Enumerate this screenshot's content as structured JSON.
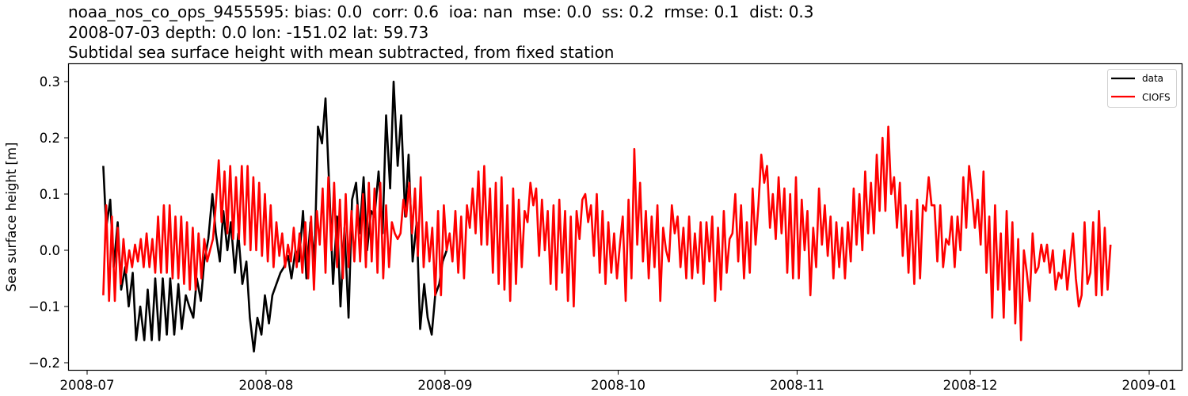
{
  "title": {
    "line1": "noaa_nos_co_ops_9455595: bias: 0.0  corr: 0.6  ioa: nan  mse: 0.0  ss: 0.2  rmse: 0.1  dist: 0.3",
    "line2": "2008-07-03 depth: 0.0 lon: -151.02 lat: 59.73",
    "line3": "Subtidal sea surface height with mean subtracted, from fixed station"
  },
  "axes": {
    "ylabel": "Sea surface height [m]",
    "yticks": [
      "0.3",
      "0.2",
      "0.1",
      "0.0",
      "−0.1",
      "−0.2"
    ],
    "xticks": [
      "2008-07",
      "2008-08",
      "2008-09",
      "2008-10",
      "2008-11",
      "2008-12",
      "2009-01"
    ]
  },
  "legend": {
    "items": [
      {
        "label": "data",
        "color": "#000000"
      },
      {
        "label": "CIOFS",
        "color": "#ff0000"
      }
    ]
  },
  "chart_data": {
    "type": "line",
    "title": "noaa_nos_co_ops_9455595: bias: 0.0  corr: 0.6  ioa: nan  mse: 0.0  ss: 0.2  rmse: 0.1  dist: 0.3 / 2008-07-03 depth: 0.0 lon: -151.02 lat: 59.73 / Subtidal sea surface height with mean subtracted, from fixed station",
    "xlabel": "",
    "ylabel": "Sea surface height [m]",
    "ylim": [
      -0.215,
      0.33
    ],
    "xlim": [
      "2008-06-28",
      "2009-01-04"
    ],
    "grid": false,
    "legend_position": "upper right",
    "x_ticks": [
      "2008-07",
      "2008-08",
      "2008-09",
      "2008-10",
      "2008-11",
      "2008-12",
      "2009-01"
    ],
    "y_ticks": [
      0.3,
      0.2,
      0.1,
      0.0,
      -0.1,
      -0.2
    ],
    "series": [
      {
        "name": "data",
        "color": "#000000",
        "x_day_offset_from_2008-07-01": [
          2.8,
          3.3,
          4.0,
          4.6,
          5.3,
          5.9,
          6.6,
          7.2,
          7.9,
          8.5,
          9.2,
          9.9,
          10.5,
          11.2,
          11.8,
          12.5,
          13.1,
          13.8,
          14.4,
          15.1,
          15.8,
          16.4,
          17.1,
          17.7,
          18.4,
          19.0,
          19.7,
          20.3,
          21.0,
          21.7,
          22.3,
          23.0,
          23.6,
          24.3,
          24.9,
          25.6,
          26.2,
          26.9,
          27.6,
          28.2,
          28.9,
          29.5,
          30.2,
          30.8,
          31.5,
          32.1,
          32.8,
          33.5,
          34.1,
          34.8,
          35.4,
          36.1,
          36.7,
          37.4,
          38.0,
          38.7,
          39.4,
          40.0,
          40.7,
          41.3,
          42.0,
          42.6,
          43.3,
          43.9,
          44.6,
          45.3,
          45.9,
          46.6,
          47.2,
          47.9,
          48.5,
          49.2,
          49.8,
          50.5,
          51.2,
          51.8,
          52.5,
          53.1,
          53.8,
          54.4,
          55.1,
          55.7,
          56.4,
          57.1,
          57.7,
          58.4,
          59.0,
          59.7,
          60.3,
          61.0,
          61.6,
          62.3
        ],
        "values": [
          0.15,
          0.04,
          0.09,
          -0.03,
          0.05,
          -0.07,
          -0.03,
          -0.1,
          -0.04,
          -0.16,
          -0.1,
          -0.16,
          -0.07,
          -0.16,
          -0.05,
          -0.16,
          -0.05,
          -0.15,
          -0.05,
          -0.15,
          -0.06,
          -0.14,
          -0.08,
          -0.1,
          -0.12,
          -0.05,
          -0.09,
          -0.02,
          0.02,
          0.1,
          0.03,
          -0.02,
          0.07,
          0.0,
          0.05,
          -0.04,
          0.03,
          -0.06,
          -0.02,
          -0.12,
          -0.18,
          -0.12,
          -0.15,
          -0.08,
          -0.13,
          -0.08,
          -0.06,
          -0.04,
          -0.03,
          -0.01,
          -0.05,
          0.0,
          -0.02,
          0.07,
          -0.05,
          0.05,
          -0.02,
          0.22,
          0.19,
          0.27,
          0.1,
          -0.06,
          0.06,
          -0.1,
          0.04,
          -0.12,
          0.09,
          0.12,
          0.03,
          0.13,
          0.0,
          0.07,
          0.06,
          0.14,
          0.03,
          0.24,
          0.11,
          0.3,
          0.15,
          0.24,
          0.06,
          0.17,
          -0.02,
          0.05,
          -0.14,
          -0.06,
          -0.12,
          -0.15,
          -0.08,
          -0.06,
          -0.02,
          0.0
        ]
      },
      {
        "name": "CIOFS",
        "color": "#ff0000",
        "x_day_offset_from_2008-07-01": [
          2.8,
          3.3,
          3.8,
          4.3,
          4.8,
          5.3,
          5.8,
          6.3,
          6.8,
          7.3,
          7.8,
          8.3,
          8.8,
          9.3,
          9.8,
          10.3,
          10.8,
          11.3,
          11.8,
          12.3,
          12.8,
          13.3,
          13.8,
          14.3,
          14.8,
          15.3,
          15.8,
          16.3,
          16.8,
          17.3,
          17.8,
          18.3,
          18.8,
          19.3,
          19.8,
          20.3,
          20.8,
          21.3,
          21.8,
          22.3,
          22.8,
          23.3,
          23.8,
          24.3,
          24.8,
          25.3,
          25.8,
          26.3,
          26.8,
          27.3,
          27.8,
          28.3,
          28.8,
          29.3,
          29.8,
          30.3,
          30.8,
          31.3,
          31.8,
          32.3,
          32.8,
          33.3,
          33.8,
          34.3,
          34.8,
          35.3,
          35.8,
          36.3,
          36.8,
          37.3,
          37.8,
          38.3,
          38.8,
          39.3,
          39.8,
          40.3,
          40.8,
          41.3,
          41.8,
          42.3,
          42.8,
          43.3,
          43.8,
          44.3,
          44.8,
          45.3,
          45.8,
          46.3,
          46.8,
          47.3,
          47.8,
          48.3,
          48.8,
          49.3,
          49.8,
          50.3,
          50.8,
          51.3,
          51.8,
          52.3,
          52.8,
          53.3,
          53.8,
          54.3,
          54.8,
          55.3,
          55.8,
          56.3,
          56.8,
          57.3,
          57.8,
          58.3,
          58.8,
          59.3,
          59.8,
          60.3,
          60.8,
          61.3,
          61.8,
          62.3,
          62.8,
          63.3,
          63.8,
          64.3,
          64.8,
          65.3,
          65.8,
          66.3,
          66.8,
          67.3,
          67.8,
          68.3,
          68.8,
          69.3,
          69.8,
          70.3,
          70.8,
          71.3,
          71.8,
          72.3,
          72.8,
          73.3,
          73.8,
          74.3,
          74.8,
          75.3,
          75.8,
          76.3,
          76.8,
          77.3,
          77.8,
          78.3,
          78.8,
          79.3,
          79.8,
          80.3,
          80.8,
          81.3,
          81.8,
          82.3,
          82.8,
          83.3,
          83.8,
          84.3,
          84.8,
          85.3,
          85.8,
          86.3,
          86.8,
          87.3,
          87.8,
          88.3,
          88.8,
          89.3,
          89.8,
          90.3,
          90.8,
          91.3,
          91.8,
          92.3,
          92.8,
          93.3,
          93.8,
          94.3,
          94.8,
          95.3,
          95.8,
          96.3,
          96.8,
          97.3,
          97.8,
          98.3,
          98.8,
          99.3,
          99.8,
          100.3,
          100.8,
          101.3,
          101.8,
          102.3,
          102.8,
          103.3,
          103.8,
          104.3,
          104.8,
          105.3,
          105.8,
          106.3,
          106.8,
          107.3,
          107.8,
          108.3,
          108.8,
          109.3,
          109.8,
          110.3,
          110.8,
          111.3,
          111.8,
          112.3,
          112.8,
          113.3,
          113.8,
          114.3,
          114.8,
          115.3,
          115.8,
          116.3,
          116.8,
          117.3,
          117.8,
          118.3,
          118.8,
          119.3,
          119.8,
          120.3,
          120.8,
          121.3,
          121.8,
          122.3,
          122.8,
          123.3,
          123.8,
          124.3,
          124.8,
          125.3,
          125.8,
          126.3,
          126.8,
          127.3,
          127.8,
          128.3,
          128.8,
          129.3,
          129.8,
          130.3,
          130.8,
          131.3,
          131.8,
          132.3,
          132.8,
          133.3,
          133.8,
          134.3,
          134.8,
          135.3,
          135.8,
          136.3,
          136.8,
          137.3,
          137.8,
          138.3,
          138.8,
          139.3,
          139.8,
          140.3,
          140.8,
          141.3,
          141.8,
          142.3,
          142.8,
          143.3,
          143.8,
          144.3,
          144.8,
          145.3,
          145.8,
          146.3,
          146.8,
          147.3,
          147.8,
          148.3,
          148.8,
          149.3,
          149.8,
          150.3,
          150.8,
          151.3,
          151.8,
          152.3,
          152.8,
          153.3,
          153.8,
          154.3,
          154.8,
          155.3,
          155.8,
          156.3,
          156.8,
          157.3,
          157.8,
          158.3,
          158.8,
          159.3,
          159.8,
          160.3,
          160.8,
          161.3,
          161.8,
          162.3,
          162.8,
          163.3,
          163.8,
          164.3,
          164.8,
          165.3,
          165.8,
          166.3,
          166.8,
          167.3,
          167.8,
          168.3,
          168.8,
          169.3,
          169.8,
          170.3,
          170.8,
          171.3,
          171.8,
          172.3,
          172.8,
          173.3,
          173.8,
          174.3,
          174.8,
          175.3,
          175.8,
          176.3,
          176.8,
          177.3,
          177.8,
          178.3,
          178.8,
          179.3,
          179.8,
          180.3,
          180.8,
          181.3,
          181.8,
          182.3,
          182.8
        ],
        "values": [
          -0.08,
          0.08,
          -0.09,
          0.06,
          -0.09,
          0.04,
          -0.06,
          0.02,
          -0.04,
          0.0,
          -0.03,
          0.01,
          -0.02,
          0.02,
          -0.03,
          0.03,
          -0.03,
          0.02,
          -0.04,
          0.06,
          -0.04,
          0.08,
          -0.04,
          0.08,
          -0.05,
          0.06,
          -0.05,
          0.06,
          -0.06,
          0.05,
          -0.07,
          0.04,
          -0.07,
          0.03,
          -0.05,
          0.02,
          -0.02,
          0.0,
          0.02,
          0.08,
          0.16,
          0.05,
          0.14,
          0.03,
          0.15,
          0.02,
          0.13,
          0.02,
          0.15,
          0.01,
          0.15,
          0.0,
          0.13,
          0.0,
          0.12,
          -0.01,
          0.1,
          -0.02,
          0.08,
          -0.03,
          0.05,
          -0.01,
          0.03,
          -0.03,
          0.01,
          -0.02,
          0.04,
          -0.03,
          0.03,
          -0.04,
          0.05,
          -0.05,
          0.06,
          -0.07,
          0.07,
          0.01,
          0.11,
          -0.04,
          0.13,
          0.0,
          0.12,
          -0.03,
          0.09,
          -0.05,
          0.1,
          -0.03,
          0.07,
          -0.02,
          0.08,
          -0.02,
          0.1,
          -0.03,
          0.12,
          -0.02,
          0.11,
          -0.04,
          0.12,
          -0.05,
          0.08,
          -0.03,
          0.05,
          0.03,
          0.02,
          0.03,
          0.09,
          0.06,
          0.12,
          0.03,
          0.11,
          -0.01,
          0.13,
          -0.03,
          0.05,
          -0.02,
          0.04,
          -0.08,
          0.07,
          -0.08,
          0.08,
          0.0,
          0.03,
          -0.02,
          0.07,
          -0.04,
          0.06,
          -0.05,
          0.08,
          0.04,
          0.11,
          0.03,
          0.14,
          0.01,
          0.15,
          0.01,
          0.11,
          -0.04,
          0.12,
          -0.06,
          0.13,
          -0.07,
          0.08,
          -0.09,
          0.11,
          -0.06,
          0.09,
          -0.03,
          0.07,
          0.05,
          0.12,
          0.08,
          0.11,
          -0.01,
          0.09,
          0.0,
          0.07,
          -0.06,
          0.08,
          -0.07,
          0.09,
          -0.04,
          0.07,
          -0.09,
          0.06,
          -0.1,
          0.07,
          0.02,
          0.09,
          0.1,
          0.05,
          0.08,
          -0.01,
          0.1,
          -0.04,
          0.07,
          -0.06,
          0.05,
          -0.04,
          0.03,
          -0.05,
          0.01,
          0.06,
          -0.09,
          0.09,
          -0.05,
          0.18,
          0.01,
          0.12,
          -0.02,
          0.07,
          -0.05,
          0.06,
          -0.03,
          0.08,
          -0.09,
          0.04,
          0.0,
          -0.02,
          0.08,
          0.03,
          0.06,
          -0.03,
          0.04,
          -0.05,
          0.06,
          -0.05,
          0.03,
          -0.04,
          0.05,
          -0.06,
          0.05,
          -0.02,
          0.06,
          -0.09,
          0.04,
          -0.07,
          0.07,
          -0.04,
          0.02,
          0.03,
          0.1,
          -0.02,
          0.08,
          -0.05,
          0.05,
          -0.04,
          0.11,
          0.01,
          0.08,
          0.17,
          0.12,
          0.15,
          0.04,
          0.1,
          0.02,
          0.13,
          0.03,
          0.11,
          -0.04,
          0.1,
          -0.05,
          0.13,
          -0.05,
          0.09,
          0.0,
          0.07,
          -0.08,
          0.04,
          -0.03,
          0.11,
          0.01,
          0.08,
          -0.01,
          0.06,
          -0.05,
          0.05,
          -0.03,
          0.04,
          -0.05,
          0.05,
          -0.02,
          0.11,
          0.01,
          0.1,
          0.0,
          0.14,
          0.03,
          0.12,
          0.03,
          0.17,
          0.07,
          0.2,
          0.07,
          0.22,
          0.1,
          0.13,
          0.04,
          0.12,
          -0.01,
          0.08,
          -0.04,
          0.07,
          -0.06,
          0.09,
          -0.05,
          0.08,
          0.07,
          0.13,
          0.08,
          0.08,
          -0.02,
          0.08,
          -0.03,
          0.02,
          0.01,
          0.06,
          -0.03,
          0.06,
          0.0,
          0.13,
          0.04,
          0.15,
          0.1,
          0.04,
          0.09,
          0.01,
          0.14,
          -0.04,
          0.06,
          -0.12,
          0.08,
          -0.07,
          0.03,
          -0.12,
          0.07,
          -0.07,
          0.05,
          -0.13,
          0.02,
          -0.16,
          0.0,
          -0.04,
          -0.09,
          0.03,
          -0.04,
          -0.03,
          0.01,
          -0.02,
          0.01,
          -0.04,
          0.0,
          -0.07,
          -0.04,
          -0.05,
          0.0,
          -0.07,
          -0.02,
          0.03,
          -0.05,
          -0.1,
          -0.08,
          0.05,
          -0.06,
          -0.04,
          0.05,
          -0.08,
          0.07,
          -0.08,
          0.04,
          -0.07,
          0.01
        ]
      }
    ]
  }
}
